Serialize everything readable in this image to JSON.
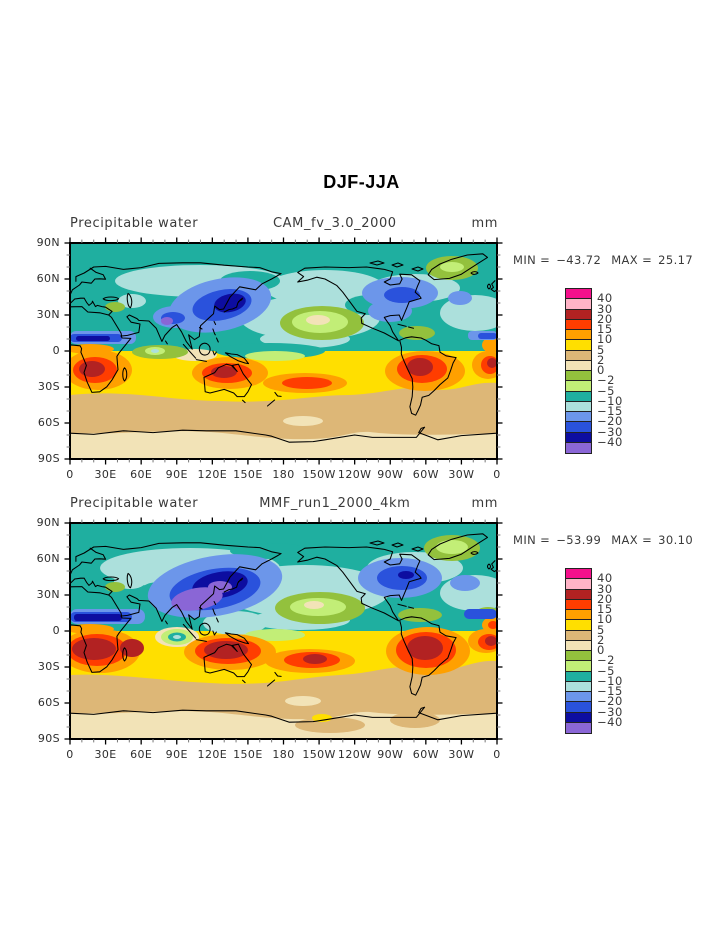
{
  "figure": {
    "title": "DJF-JJA",
    "background": "#ffffff"
  },
  "panels": [
    {
      "field_label": "Precipitable water",
      "case_label": "CAM_fv_3.0_2000",
      "units": "mm",
      "stats": {
        "min_label": "MIN =",
        "min_value": "−43.72",
        "max_label": "MAX =",
        "max_value": "25.17"
      }
    },
    {
      "field_label": "Precipitable water",
      "case_label": "MMF_run1_2000_4km",
      "units": "mm",
      "stats": {
        "min_label": "MIN =",
        "min_value": "−53.99",
        "max_label": "MAX =",
        "max_value": "30.10"
      }
    }
  ],
  "axes": {
    "x_ticks": [
      "0",
      "30E",
      "60E",
      "90E",
      "120E",
      "150E",
      "180",
      "150W",
      "120W",
      "90W",
      "60W",
      "30W",
      "0"
    ],
    "y_ticks": [
      "90N",
      "60N",
      "30N",
      "0",
      "30S",
      "60S",
      "90S"
    ]
  },
  "colorbar": {
    "labels": [
      "40",
      "30",
      "20",
      "15",
      "10",
      "5",
      "2",
      "0",
      "−2",
      "−5",
      "−10",
      "−15",
      "−20",
      "−30",
      "−40"
    ],
    "colors": [
      "#F5108C",
      "#FFB3C6",
      "#B22222",
      "#FF3D00",
      "#FFA000",
      "#FFDF00",
      "#DDB777",
      "#F2E3B7",
      "#93C13D",
      "#C2EE77",
      "#1FAFA0",
      "#ACE0DC",
      "#6C96EA",
      "#2A52DC",
      "#0D0DA0",
      "#8A66D6"
    ]
  },
  "chart_data": [
    {
      "type": "heatmap",
      "subtype": "filled-contour-global-map",
      "figure_title": "DJF-JJA",
      "panel_title": "Precipitable water",
      "case": "CAM_fv_3.0_2000",
      "units": "mm",
      "min": -43.72,
      "max": 25.17,
      "contour_levels": [
        -40,
        -30,
        -20,
        -15,
        -10,
        -5,
        -2,
        0,
        2,
        5,
        10,
        15,
        20,
        30,
        40
      ],
      "palette_low_to_high": [
        "#8A66D6",
        "#0D0DA0",
        "#2A52DC",
        "#6C96EA",
        "#ACE0DC",
        "#1FAFA0",
        "#C2EE77",
        "#93C13D",
        "#F2E3B7",
        "#DDB777",
        "#FFDF00",
        "#FFA000",
        "#FF3D00",
        "#B22222",
        "#FFB3C6",
        "#F5108C"
      ],
      "x_ticks": [
        "0",
        "30E",
        "60E",
        "90E",
        "120E",
        "150E",
        "180",
        "150W",
        "120W",
        "90W",
        "60W",
        "30W",
        "0"
      ],
      "y_ticks": [
        "90N",
        "60N",
        "30N",
        "0",
        "30S",
        "60S",
        "90S"
      ],
      "x_range_deg_east": [
        0,
        360
      ],
      "y_range_deg_lat": [
        -90,
        90
      ],
      "projection": "equirectangular",
      "legend_position": "right",
      "grid": false
    },
    {
      "type": "heatmap",
      "subtype": "filled-contour-global-map",
      "figure_title": "DJF-JJA",
      "panel_title": "Precipitable water",
      "case": "MMF_run1_2000_4km",
      "units": "mm",
      "min": -53.99,
      "max": 30.1,
      "contour_levels": [
        -40,
        -30,
        -20,
        -15,
        -10,
        -5,
        -2,
        0,
        2,
        5,
        10,
        15,
        20,
        30,
        40
      ],
      "palette_low_to_high": [
        "#8A66D6",
        "#0D0DA0",
        "#2A52DC",
        "#6C96EA",
        "#ACE0DC",
        "#1FAFA0",
        "#C2EE77",
        "#93C13D",
        "#F2E3B7",
        "#DDB777",
        "#FFDF00",
        "#FFA000",
        "#FF3D00",
        "#B22222",
        "#FFB3C6",
        "#F5108C"
      ],
      "x_ticks": [
        "0",
        "30E",
        "60E",
        "90E",
        "120E",
        "150E",
        "180",
        "150W",
        "120W",
        "90W",
        "60W",
        "30W",
        "0"
      ],
      "y_ticks": [
        "90N",
        "60N",
        "30N",
        "0",
        "30S",
        "60S",
        "90S"
      ],
      "x_range_deg_east": [
        0,
        360
      ],
      "y_range_deg_lat": [
        -90,
        90
      ],
      "projection": "equirectangular",
      "legend_position": "right",
      "grid": false
    }
  ]
}
